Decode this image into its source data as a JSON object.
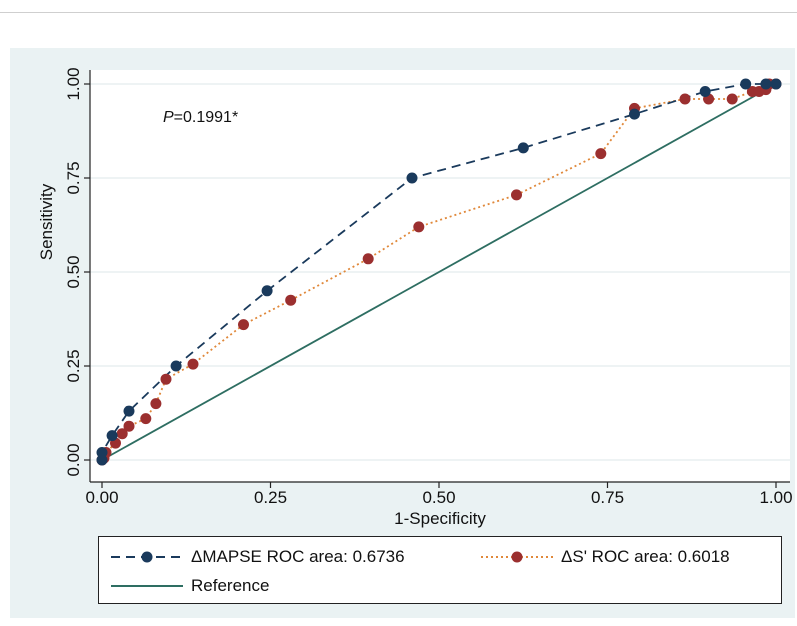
{
  "chart_data": {
    "type": "line",
    "xlabel": "1-Specificity",
    "ylabel": "Sensitivity",
    "xlim": [
      0,
      1
    ],
    "ylim": [
      0,
      1
    ],
    "x_ticks": [
      "0.00",
      "0.25",
      "0.50",
      "0.75",
      "1.00"
    ],
    "y_ticks": [
      "0.00",
      "0.25",
      "0.50",
      "0.75",
      "1.00"
    ],
    "grid": true,
    "legend_position": "bottom",
    "annotation": {
      "prefix": "P",
      "text": "=0.1991*"
    },
    "series": [
      {
        "name": "ΔMAPSE ROC area: 0.6736",
        "color": "#1a3a5c",
        "line_style": "dashed",
        "markers": true,
        "points": [
          [
            0,
            0
          ],
          [
            0,
            0.02
          ],
          [
            0.015,
            0.065
          ],
          [
            0.04,
            0.13
          ],
          [
            0.11,
            0.25
          ],
          [
            0.245,
            0.45
          ],
          [
            0.46,
            0.75
          ],
          [
            0.625,
            0.83
          ],
          [
            0.79,
            0.92
          ],
          [
            0.895,
            0.98
          ],
          [
            0.955,
            1.0
          ],
          [
            0.985,
            1.0
          ],
          [
            1.0,
            1.0
          ]
        ]
      },
      {
        "name": "ΔS' ROC area: 0.6018",
        "color": "#9b2f2f",
        "line_color": "#e0883a",
        "line_style": "dotted",
        "markers": true,
        "points": [
          [
            0,
            0
          ],
          [
            0.003,
            0.005
          ],
          [
            0.006,
            0.02
          ],
          [
            0.02,
            0.045
          ],
          [
            0.03,
            0.07
          ],
          [
            0.04,
            0.09
          ],
          [
            0.065,
            0.11
          ],
          [
            0.08,
            0.15
          ],
          [
            0.095,
            0.215
          ],
          [
            0.135,
            0.255
          ],
          [
            0.21,
            0.36
          ],
          [
            0.28,
            0.425
          ],
          [
            0.395,
            0.535
          ],
          [
            0.47,
            0.62
          ],
          [
            0.615,
            0.705
          ],
          [
            0.74,
            0.815
          ],
          [
            0.79,
            0.935
          ],
          [
            0.865,
            0.96
          ],
          [
            0.9,
            0.96
          ],
          [
            0.935,
            0.96
          ],
          [
            0.965,
            0.98
          ],
          [
            0.975,
            0.98
          ],
          [
            0.985,
            0.985
          ],
          [
            0.99,
            1.0
          ],
          [
            1.0,
            1.0
          ]
        ]
      },
      {
        "name": "Reference",
        "color": "#2e6e62",
        "line_style": "solid",
        "markers": false,
        "points": [
          [
            0,
            0
          ],
          [
            1,
            1
          ]
        ]
      }
    ]
  }
}
